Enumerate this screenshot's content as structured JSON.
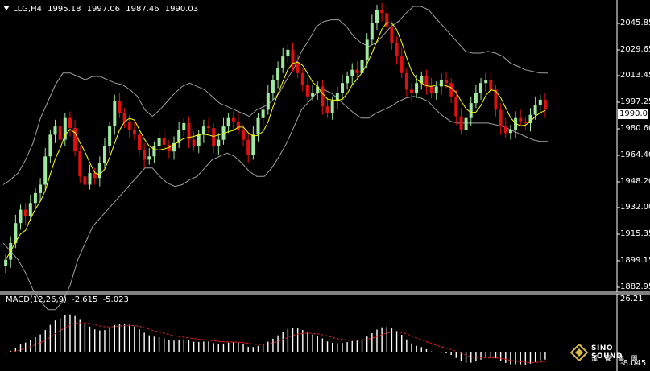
{
  "header": {
    "symbol": "LLG,H4",
    "open": "1995.18",
    "high": "1997.06",
    "low": "1987.46",
    "close": "1990.03"
  },
  "price_axis": {
    "labels": [
      "2045.85",
      "2029.65",
      "2013.45",
      "1997.25",
      "1980.60",
      "1964.40",
      "1948.20",
      "1932.00",
      "1915.35",
      "1899.15",
      "1882.95"
    ],
    "current_price": "1990.03"
  },
  "macd": {
    "label": "MACD(12,26,9)",
    "value1": "-2.615",
    "value2": "-5.023",
    "axis_top": "26.21",
    "axis_bottom": "-8.045"
  },
  "logo": {
    "line1": "SINO SOUND",
    "line2": "漢 聲 集 團"
  },
  "colors": {
    "background": "#000000",
    "bull_candle": "#9fe8a0",
    "bear_candle": "#e01010",
    "ma_line": "#ffff00",
    "bands": "#a0a0a0",
    "signal_line": "#e02020",
    "macd_hist": "#ffffff"
  },
  "chart_data": {
    "type": "candlestick",
    "ylim": [
      1882.95,
      2052.0
    ],
    "macd_ylim": [
      -8.045,
      26.21
    ],
    "close": [
      1900,
      1910,
      1922,
      1930,
      1926,
      1934,
      1940,
      1945,
      1962,
      1975,
      1980,
      1972,
      1985,
      1979,
      1965,
      1950,
      1945,
      1952,
      1949,
      1958,
      1968,
      1980,
      1995,
      1988,
      1983,
      1978,
      1975,
      1966,
      1960,
      1962,
      1968,
      1973,
      1969,
      1965,
      1970,
      1978,
      1982,
      1972,
      1968,
      1975,
      1980,
      1979,
      1968,
      1972,
      1980,
      1985,
      1983,
      1978,
      1972,
      1963,
      1975,
      1985,
      1990,
      2000,
      2008,
      2015,
      2022,
      2026,
      2018,
      2012,
      2005,
      1998,
      2000,
      2004,
      1992,
      1988,
      1995,
      2000,
      2006,
      2010,
      2014,
      2012,
      2020,
      2032,
      2042,
      2050,
      2048,
      2040,
      2030,
      2022,
      2012,
      2002,
      2000,
      2006,
      2010,
      2004,
      2000,
      2004,
      2008,
      2006,
      1998,
      1986,
      1978,
      1985,
      1994,
      2000,
      2006,
      2008,
      2002,
      1990,
      1980,
      1976,
      1978,
      1985,
      1983,
      1982,
      1987,
      1993,
      1996,
      1990
    ],
    "bb_upper": [
      1945,
      1948,
      1952,
      1960,
      1970,
      1985,
      1995,
      2005,
      2012,
      2012,
      2010,
      2008,
      2010,
      2010,
      2008,
      2006,
      2005,
      2002,
      1998,
      1990,
      1986,
      1990,
      1995,
      2000,
      2004,
      2006,
      2004,
      2002,
      1998,
      1994,
      1992,
      1990,
      1988,
      1986,
      1990,
      1992,
      1995,
      2000,
      2008,
      2015,
      2025,
      2032,
      2040,
      2043,
      2044,
      2044,
      2040,
      2034,
      2030,
      2028,
      2030,
      2035,
      2040,
      2043,
      2048,
      2052,
      2052,
      2050,
      2045,
      2040,
      2035,
      2030,
      2025,
      2024,
      2024,
      2025,
      2024,
      2022,
      2018,
      2016,
      2014,
      2013,
      2012,
      2012
    ],
    "bb_lower": [
      1910,
      1905,
      1900,
      1892,
      1882,
      1875,
      1870,
      1870,
      1875,
      1885,
      1900,
      1910,
      1920,
      1925,
      1930,
      1935,
      1940,
      1945,
      1950,
      1955,
      1955,
      1950,
      1946,
      1944,
      1945,
      1948,
      1950,
      1955,
      1960,
      1962,
      1964,
      1962,
      1958,
      1953,
      1950,
      1950,
      1955,
      1962,
      1970,
      1980,
      1990,
      1995,
      2000,
      2002,
      2000,
      1996,
      1992,
      1988,
      1985,
      1985,
      1988,
      1990,
      1992,
      1995,
      1997,
      1998,
      1997,
      1995,
      1990,
      1986,
      1983,
      1982,
      1982,
      1982,
      1982,
      1982,
      1981,
      1980,
      1978,
      1976,
      1974,
      1972,
      1971,
      1971
    ]
  }
}
